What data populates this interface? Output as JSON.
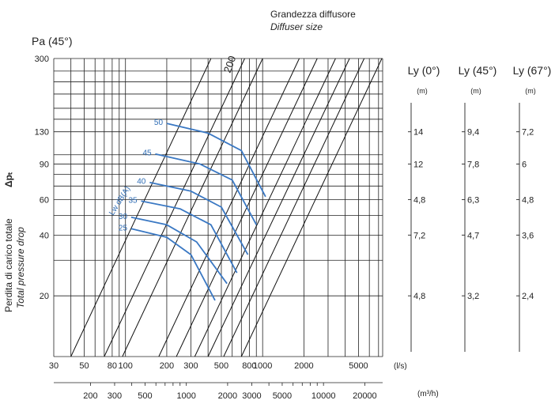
{
  "header": {
    "size_label_it": "Grandezza diffusore",
    "size_label_en": "Diffuser size",
    "pa_label": "Pa (45°)"
  },
  "y_axis": {
    "label_it": "Perdita di carico totale",
    "delta_symbol": "Δpₜ",
    "label_en": "Total pressure drop",
    "ticks": [
      "20",
      "40",
      "60",
      "90",
      "130",
      "300"
    ]
  },
  "x_axis_ls": {
    "unit": "(l/s)",
    "ticks": [
      "30",
      "50",
      "80",
      "100",
      "200",
      "300",
      "500",
      "800",
      "1000",
      "2000",
      "5000"
    ]
  },
  "x_axis_m3h": {
    "unit": "(m³/h)",
    "ticks": [
      "200",
      "300",
      "500",
      "1000",
      "2000",
      "3000",
      "5000",
      "10000",
      "20000"
    ]
  },
  "throw_scales": {
    "unit": "(m)",
    "columns": [
      {
        "title": "Ly (0°)",
        "labels": [
          "14",
          "12",
          "4,8",
          "7,2",
          "4,8"
        ]
      },
      {
        "title": "Ly (45°)",
        "labels": [
          "9,4",
          "7,8",
          "6,3",
          "4,7",
          "3,2"
        ]
      },
      {
        "title": "Ly (67°)",
        "labels": [
          "7,2",
          "6",
          "4,8",
          "3,6",
          "2,4"
        ]
      }
    ]
  },
  "chart_data": {
    "type": "line",
    "x_scale": "log",
    "y_scale": "log",
    "xlabel": "(l/s)",
    "ylabel": "Perdita di carico totale Δpₜ / Total pressure drop",
    "xlim": [
      30,
      7500
    ],
    "ylim": [
      10,
      300
    ],
    "size_annotation": "200",
    "size_lines": [
      {
        "x": [
          40,
          420
        ],
        "y": [
          10,
          300
        ]
      },
      {
        "x": [
          70,
          740
        ],
        "y": [
          10,
          300
        ]
      },
      {
        "x": [
          95,
          1000
        ],
        "y": [
          10,
          300
        ]
      },
      {
        "x": [
          175,
          1850
        ],
        "y": [
          10,
          300
        ]
      },
      {
        "x": [
          235,
          2500
        ],
        "y": [
          10,
          300
        ]
      },
      {
        "x": [
          320,
          3400
        ],
        "y": [
          10,
          300
        ]
      },
      {
        "x": [
          400,
          4300
        ],
        "y": [
          10,
          300
        ]
      },
      {
        "x": [
          520,
          5500
        ],
        "y": [
          10,
          300
        ]
      },
      {
        "x": [
          700,
          7400
        ],
        "y": [
          10,
          300
        ]
      }
    ],
    "noise_label": "Lw dB(A)",
    "series": [
      {
        "name": "25",
        "x": [
          110,
          200,
          300,
          450
        ],
        "y": [
          43,
          39,
          32,
          19
        ]
      },
      {
        "name": "30",
        "x": [
          110,
          200,
          330,
          550
        ],
        "y": [
          49,
          45,
          37,
          23
        ]
      },
      {
        "name": "35",
        "x": [
          130,
          250,
          420,
          650
        ],
        "y": [
          59,
          54,
          45,
          26
        ]
      },
      {
        "name": "40",
        "x": [
          150,
          300,
          500,
          780
        ],
        "y": [
          73,
          66,
          55,
          32
        ]
      },
      {
        "name": "45",
        "x": [
          165,
          350,
          600,
          900
        ],
        "y": [
          101,
          90,
          75,
          45
        ]
      },
      {
        "name": "50",
        "x": [
          200,
          400,
          700,
          1050
        ],
        "y": [
          143,
          128,
          105,
          62
        ]
      }
    ]
  }
}
